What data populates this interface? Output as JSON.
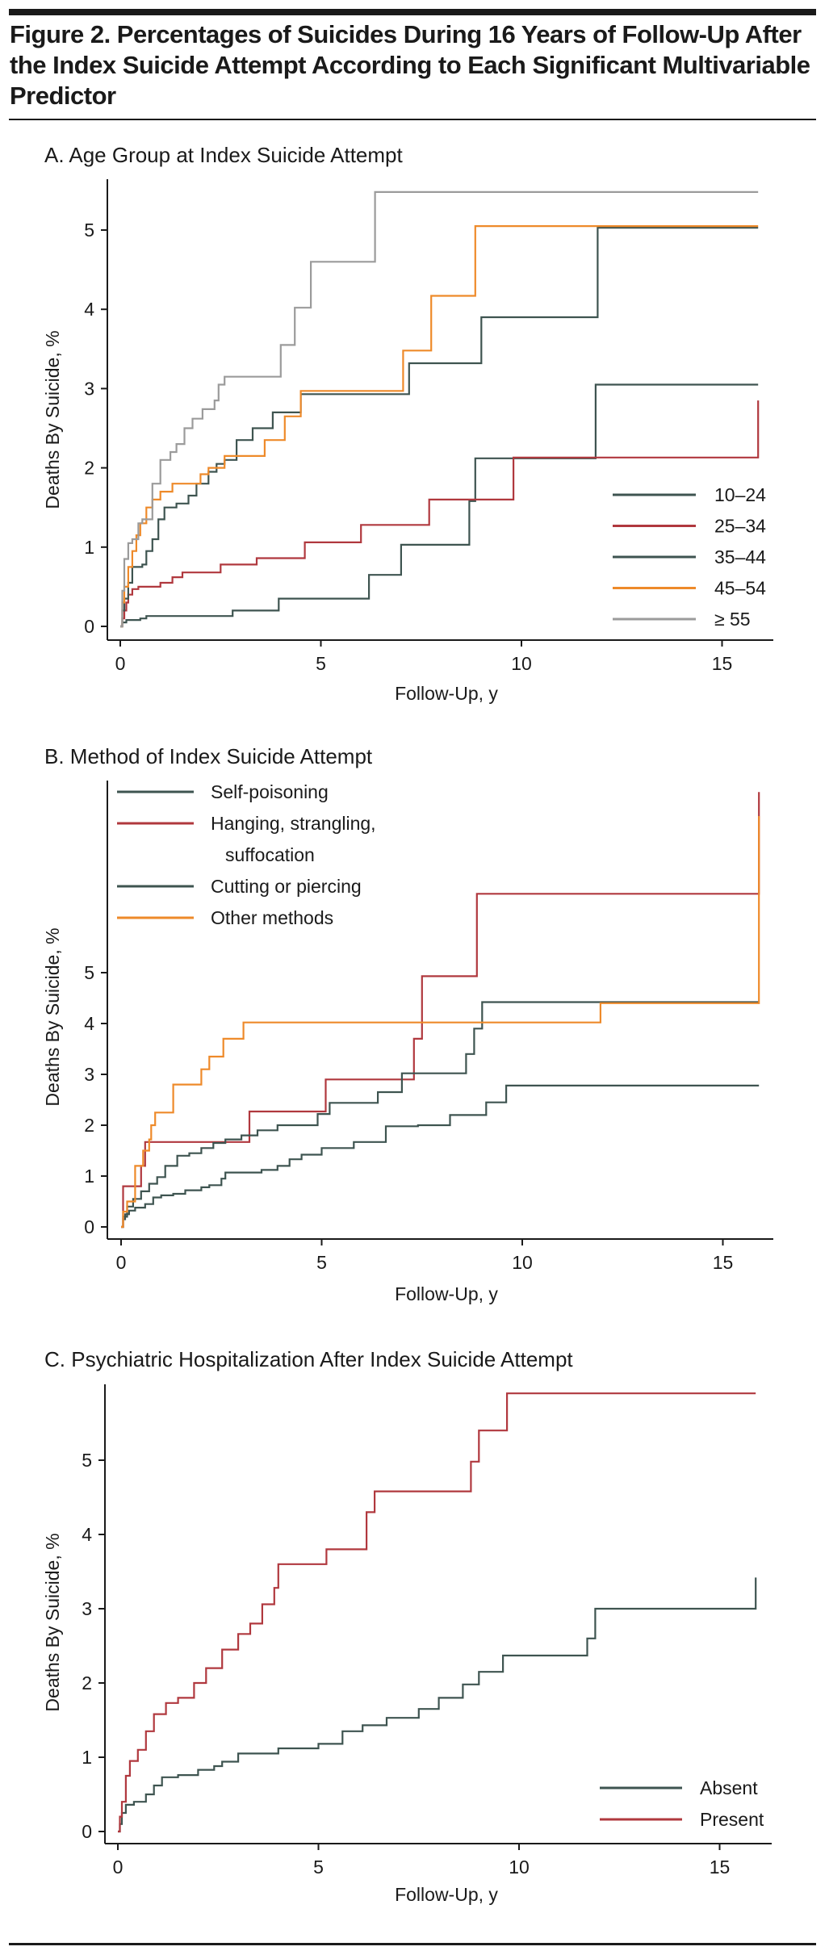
{
  "figure": {
    "title": "Figure 2. Percentages of Suicides During 16 Years of Follow-Up After the Index Suicide Attempt According to Each Significant Multivariable Predictor"
  },
  "colors": {
    "dark_slate": "#3e5450",
    "red": "#b0383e",
    "orange": "#ee8a2a",
    "gray": "#9b9b9b",
    "ink": "#1a1a1a"
  },
  "chart_data": [
    {
      "type": "line",
      "step": true,
      "title": "A. Age Group at Index Suicide Attempt",
      "xlabel": "Follow-Up, y",
      "ylabel": "Deaths By Suicide, %",
      "xlim": [
        0,
        16.25
      ],
      "ylim": [
        0,
        5.6
      ],
      "x_ticks": [
        "0",
        "5",
        "10",
        "15"
      ],
      "x_tick_values": [
        0,
        5,
        10,
        15
      ],
      "y_ticks": [
        "0",
        "1",
        "2",
        "3",
        "4",
        "5"
      ],
      "y_tick_values": [
        0,
        1,
        2,
        3,
        4,
        5
      ],
      "grid": false,
      "legend_position": "bottom-right",
      "series": [
        {
          "name": "10–24",
          "color": "#3e5450",
          "x": [
            0,
            0.05,
            0.15,
            0.5,
            0.65,
            2.7,
            2.8,
            3.95,
            6.2,
            7.0,
            8.7,
            8.85,
            11.85,
            15.9
          ],
          "y": [
            0,
            0.05,
            0.08,
            0.1,
            0.13,
            0.13,
            0.2,
            0.35,
            0.65,
            1.03,
            1.58,
            2.12,
            3.05,
            3.05
          ]
        },
        {
          "name": "25–34",
          "color": "#b0383e",
          "x": [
            0,
            0.05,
            0.1,
            0.15,
            0.2,
            0.3,
            0.45,
            1.0,
            1.3,
            1.55,
            2.5,
            3.4,
            4.6,
            6.0,
            7.7,
            9.8,
            15.9
          ],
          "y": [
            0,
            0.1,
            0.2,
            0.3,
            0.4,
            0.47,
            0.5,
            0.55,
            0.62,
            0.68,
            0.78,
            0.86,
            1.06,
            1.28,
            1.6,
            2.13,
            2.85
          ]
        },
        {
          "name": "35–44",
          "color": "#3e5450",
          "x": [
            0,
            0.05,
            0.1,
            0.2,
            0.3,
            0.55,
            0.65,
            0.8,
            0.95,
            1.1,
            1.4,
            1.7,
            1.9,
            2.2,
            2.4,
            2.6,
            2.9,
            3.3,
            3.8,
            4.5,
            7.2,
            9.0,
            11.9,
            15.9
          ],
          "y": [
            0,
            0.2,
            0.35,
            0.55,
            0.75,
            0.78,
            0.95,
            1.1,
            1.35,
            1.5,
            1.55,
            1.65,
            1.8,
            1.95,
            2.05,
            2.1,
            2.35,
            2.5,
            2.7,
            2.93,
            3.32,
            3.9,
            5.03,
            5.03
          ]
        },
        {
          "name": "45–54",
          "color": "#ee8a2a",
          "x": [
            0,
            0.05,
            0.1,
            0.2,
            0.3,
            0.4,
            0.5,
            0.65,
            0.8,
            1.0,
            1.3,
            1.6,
            2.0,
            2.2,
            2.6,
            3.6,
            4.1,
            4.5,
            7.05,
            7.75,
            8.85,
            15.9
          ],
          "y": [
            0,
            0.3,
            0.5,
            0.75,
            0.95,
            1.15,
            1.3,
            1.5,
            1.6,
            1.7,
            1.8,
            1.8,
            1.92,
            2.0,
            2.15,
            2.35,
            2.65,
            2.97,
            3.48,
            4.17,
            5.05,
            5.05
          ]
        },
        {
          "name": "≥ 55",
          "color": "#9b9b9b",
          "x": [
            0,
            0.05,
            0.1,
            0.2,
            0.3,
            0.45,
            0.55,
            0.8,
            1.0,
            1.25,
            1.4,
            1.6,
            1.8,
            2.05,
            2.35,
            2.45,
            2.6,
            4.0,
            4.35,
            4.75,
            6.35,
            15.9
          ],
          "y": [
            0,
            0.45,
            0.85,
            1.05,
            1.1,
            1.3,
            1.35,
            1.8,
            2.1,
            2.2,
            2.3,
            2.5,
            2.62,
            2.74,
            2.85,
            3.05,
            3.15,
            3.55,
            4.02,
            4.6,
            5.48,
            5.48
          ]
        }
      ]
    },
    {
      "type": "line",
      "step": true,
      "title": "B. Method of Index Suicide Attempt",
      "xlabel": "Follow-Up, y",
      "ylabel": "Deaths By Suicide, %",
      "xlim": [
        0,
        16.25
      ],
      "ylim": [
        0,
        8.9
      ],
      "x_ticks": [
        "0",
        "5",
        "10",
        "15"
      ],
      "x_tick_values": [
        0,
        5,
        10,
        15
      ],
      "y_ticks": [
        "0",
        "1",
        "2",
        "3",
        "4",
        "5"
      ],
      "y_tick_values": [
        0,
        1,
        2,
        3,
        4,
        5
      ],
      "grid": false,
      "legend_position": "top-left",
      "series": [
        {
          "name": "Self-poisoning",
          "color": "#3e5450",
          "x": [
            0,
            0.05,
            0.1,
            0.2,
            0.35,
            0.6,
            0.8,
            1.0,
            1.3,
            1.6,
            2.0,
            2.2,
            2.5,
            2.6,
            3.5,
            3.9,
            4.2,
            4.5,
            5.0,
            5.8,
            6.6,
            7.4,
            8.2,
            9.1,
            9.6,
            15.9
          ],
          "y": [
            0,
            0.15,
            0.25,
            0.32,
            0.38,
            0.45,
            0.58,
            0.62,
            0.65,
            0.72,
            0.78,
            0.82,
            0.95,
            1.07,
            1.12,
            1.2,
            1.33,
            1.42,
            1.55,
            1.67,
            1.98,
            2.0,
            2.2,
            2.45,
            2.78,
            2.78
          ]
        },
        {
          "name": "Hanging, strangling, suffocation",
          "color": "#b0383e",
          "x": [
            0,
            0.05,
            0.5,
            0.6,
            3.05,
            3.2,
            5.1,
            7.3,
            7.5,
            8.87,
            15.9
          ],
          "y": [
            0,
            0.8,
            1.2,
            1.67,
            1.67,
            2.27,
            2.9,
            3.7,
            4.93,
            6.55,
            8.55
          ]
        },
        {
          "name": "Cutting or piercing",
          "color": "#3e5450",
          "x": [
            0,
            0.05,
            0.15,
            0.3,
            0.5,
            0.7,
            0.9,
            1.1,
            1.4,
            1.7,
            2.0,
            2.3,
            2.6,
            3.0,
            3.4,
            3.9,
            4.9,
            5.2,
            6.4,
            7.0,
            8.6,
            8.8,
            9.0,
            11.95,
            15.9
          ],
          "y": [
            0,
            0.2,
            0.4,
            0.55,
            0.7,
            0.85,
            0.98,
            1.2,
            1.4,
            1.45,
            1.55,
            1.65,
            1.72,
            1.8,
            1.9,
            2.0,
            2.22,
            2.44,
            2.65,
            3.02,
            3.4,
            3.9,
            4.42,
            4.42,
            4.42
          ]
        },
        {
          "name": "Other methods",
          "color": "#ee8a2a",
          "x": [
            0,
            0.05,
            0.15,
            0.35,
            0.55,
            0.7,
            0.75,
            0.85,
            1.3,
            2.0,
            2.2,
            2.55,
            3.05,
            11.95,
            15.9
          ],
          "y": [
            0,
            0.3,
            0.5,
            1.2,
            1.5,
            1.72,
            2.0,
            2.25,
            2.8,
            3.1,
            3.35,
            3.7,
            4.02,
            4.4,
            8.08
          ]
        }
      ]
    },
    {
      "type": "line",
      "step": true,
      "title": "C. Psychiatric Hospitalization After Index Suicide Attempt",
      "xlabel": "Follow-Up, y",
      "ylabel": "Deaths By Suicide, %",
      "xlim": [
        0,
        16.25
      ],
      "ylim": [
        0,
        6.0
      ],
      "x_ticks": [
        "0",
        "5",
        "10",
        "15"
      ],
      "x_tick_values": [
        0,
        5,
        10,
        15
      ],
      "y_ticks": [
        "0",
        "1",
        "2",
        "3",
        "4",
        "5"
      ],
      "y_tick_values": [
        0,
        1,
        2,
        3,
        4,
        5
      ],
      "grid": false,
      "legend_position": "bottom-right",
      "series": [
        {
          "name": "Absent",
          "color": "#3e5450",
          "x": [
            0,
            0.05,
            0.1,
            0.2,
            0.4,
            0.7,
            0.9,
            1.1,
            1.5,
            2.0,
            2.4,
            2.6,
            3.0,
            4.0,
            5.0,
            5.6,
            6.1,
            6.7,
            7.5,
            8.0,
            8.6,
            9.0,
            9.6,
            11.7,
            11.9,
            15.9
          ],
          "y": [
            0,
            0.1,
            0.25,
            0.36,
            0.4,
            0.5,
            0.62,
            0.73,
            0.76,
            0.83,
            0.88,
            0.94,
            1.05,
            1.12,
            1.18,
            1.35,
            1.43,
            1.53,
            1.65,
            1.8,
            1.98,
            2.15,
            2.37,
            2.6,
            3.0,
            3.42
          ]
        },
        {
          "name": "Present",
          "color": "#b0383e",
          "x": [
            0,
            0.05,
            0.1,
            0.2,
            0.3,
            0.5,
            0.7,
            0.9,
            1.2,
            1.5,
            1.9,
            2.2,
            2.6,
            3.0,
            3.3,
            3.6,
            3.9,
            4.0,
            5.2,
            6.2,
            6.4,
            8.8,
            9.0,
            9.7,
            15.9
          ],
          "y": [
            0,
            0.2,
            0.4,
            0.75,
            0.95,
            1.1,
            1.35,
            1.58,
            1.73,
            1.8,
            2.0,
            2.2,
            2.45,
            2.66,
            2.8,
            3.06,
            3.28,
            3.6,
            3.8,
            4.3,
            4.58,
            4.98,
            5.4,
            5.9,
            5.9
          ]
        }
      ]
    }
  ]
}
